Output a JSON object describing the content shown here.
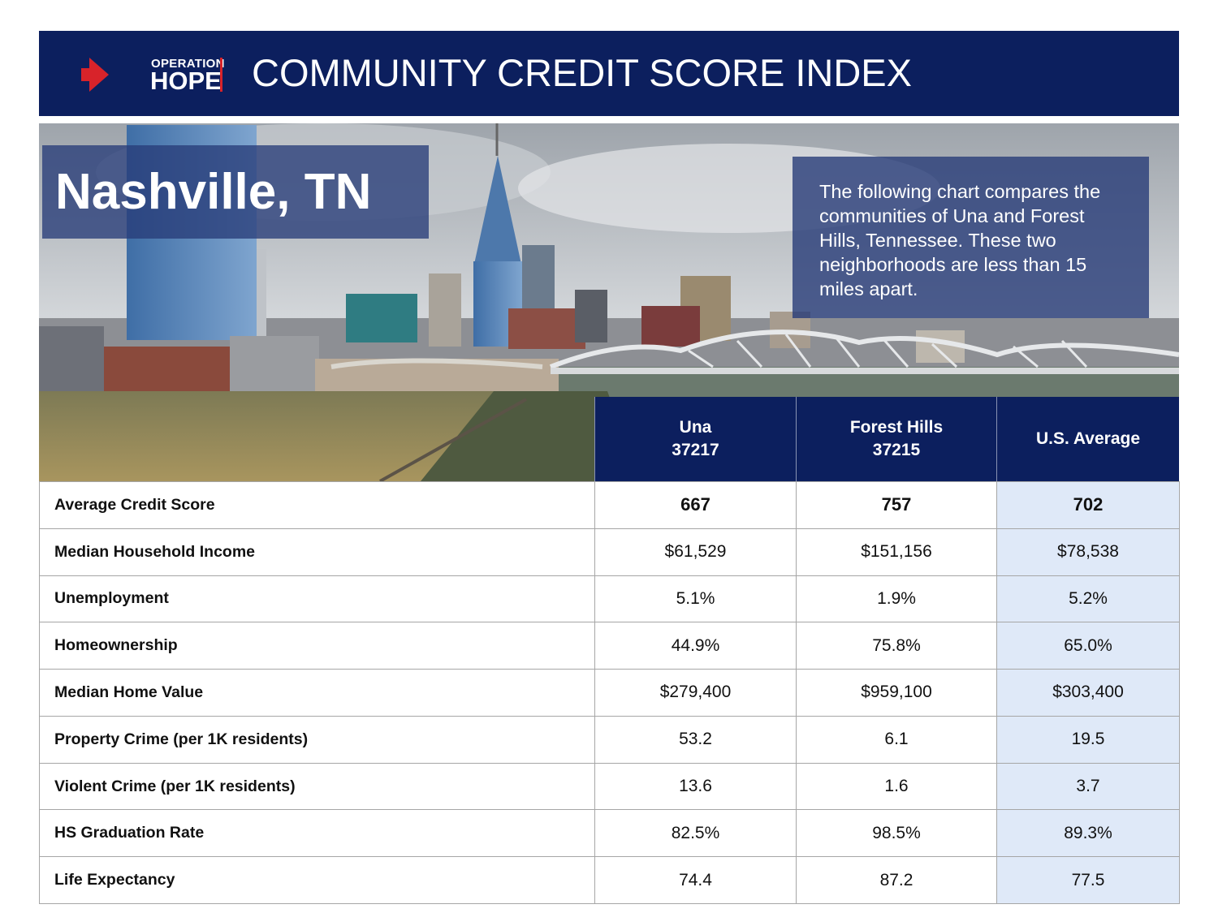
{
  "header": {
    "logo_top": "OPERATION",
    "logo_bottom": "HOPE",
    "title": "COMMUNITY CREDIT SCORE INDEX"
  },
  "hero": {
    "city": "Nashville, TN",
    "description": "The following chart compares the communities of Una and Forest Hills, Tennessee. These two neighborhoods are less than 15 miles apart."
  },
  "table": {
    "columns": [
      {
        "name": "Una",
        "zip": "37217"
      },
      {
        "name": "Forest Hills",
        "zip": "37215"
      },
      {
        "name": "U.S. Average"
      }
    ],
    "rows": [
      [
        "Average Credit Score",
        "667",
        "757",
        "702"
      ],
      [
        "Median Household Income",
        "$61,529",
        "$151,156",
        "$78,538"
      ],
      [
        "Unemployment",
        "5.1%",
        "1.9%",
        "5.2%"
      ],
      [
        "Homeownership",
        "44.9%",
        "75.8%",
        "65.0%"
      ],
      [
        "Median Home Value",
        "$279,400",
        "$959,100",
        "$303,400"
      ],
      [
        "Property Crime (per 1K residents)",
        "53.2",
        "6.1",
        "19.5"
      ],
      [
        "Violent Crime (per 1K residents)",
        "13.6",
        "1.6",
        "3.7"
      ],
      [
        "HS Graduation Rate",
        "82.5%",
        "98.5%",
        "89.3%"
      ],
      [
        "Life Expectancy",
        "74.4",
        "87.2",
        "77.5"
      ]
    ]
  }
}
